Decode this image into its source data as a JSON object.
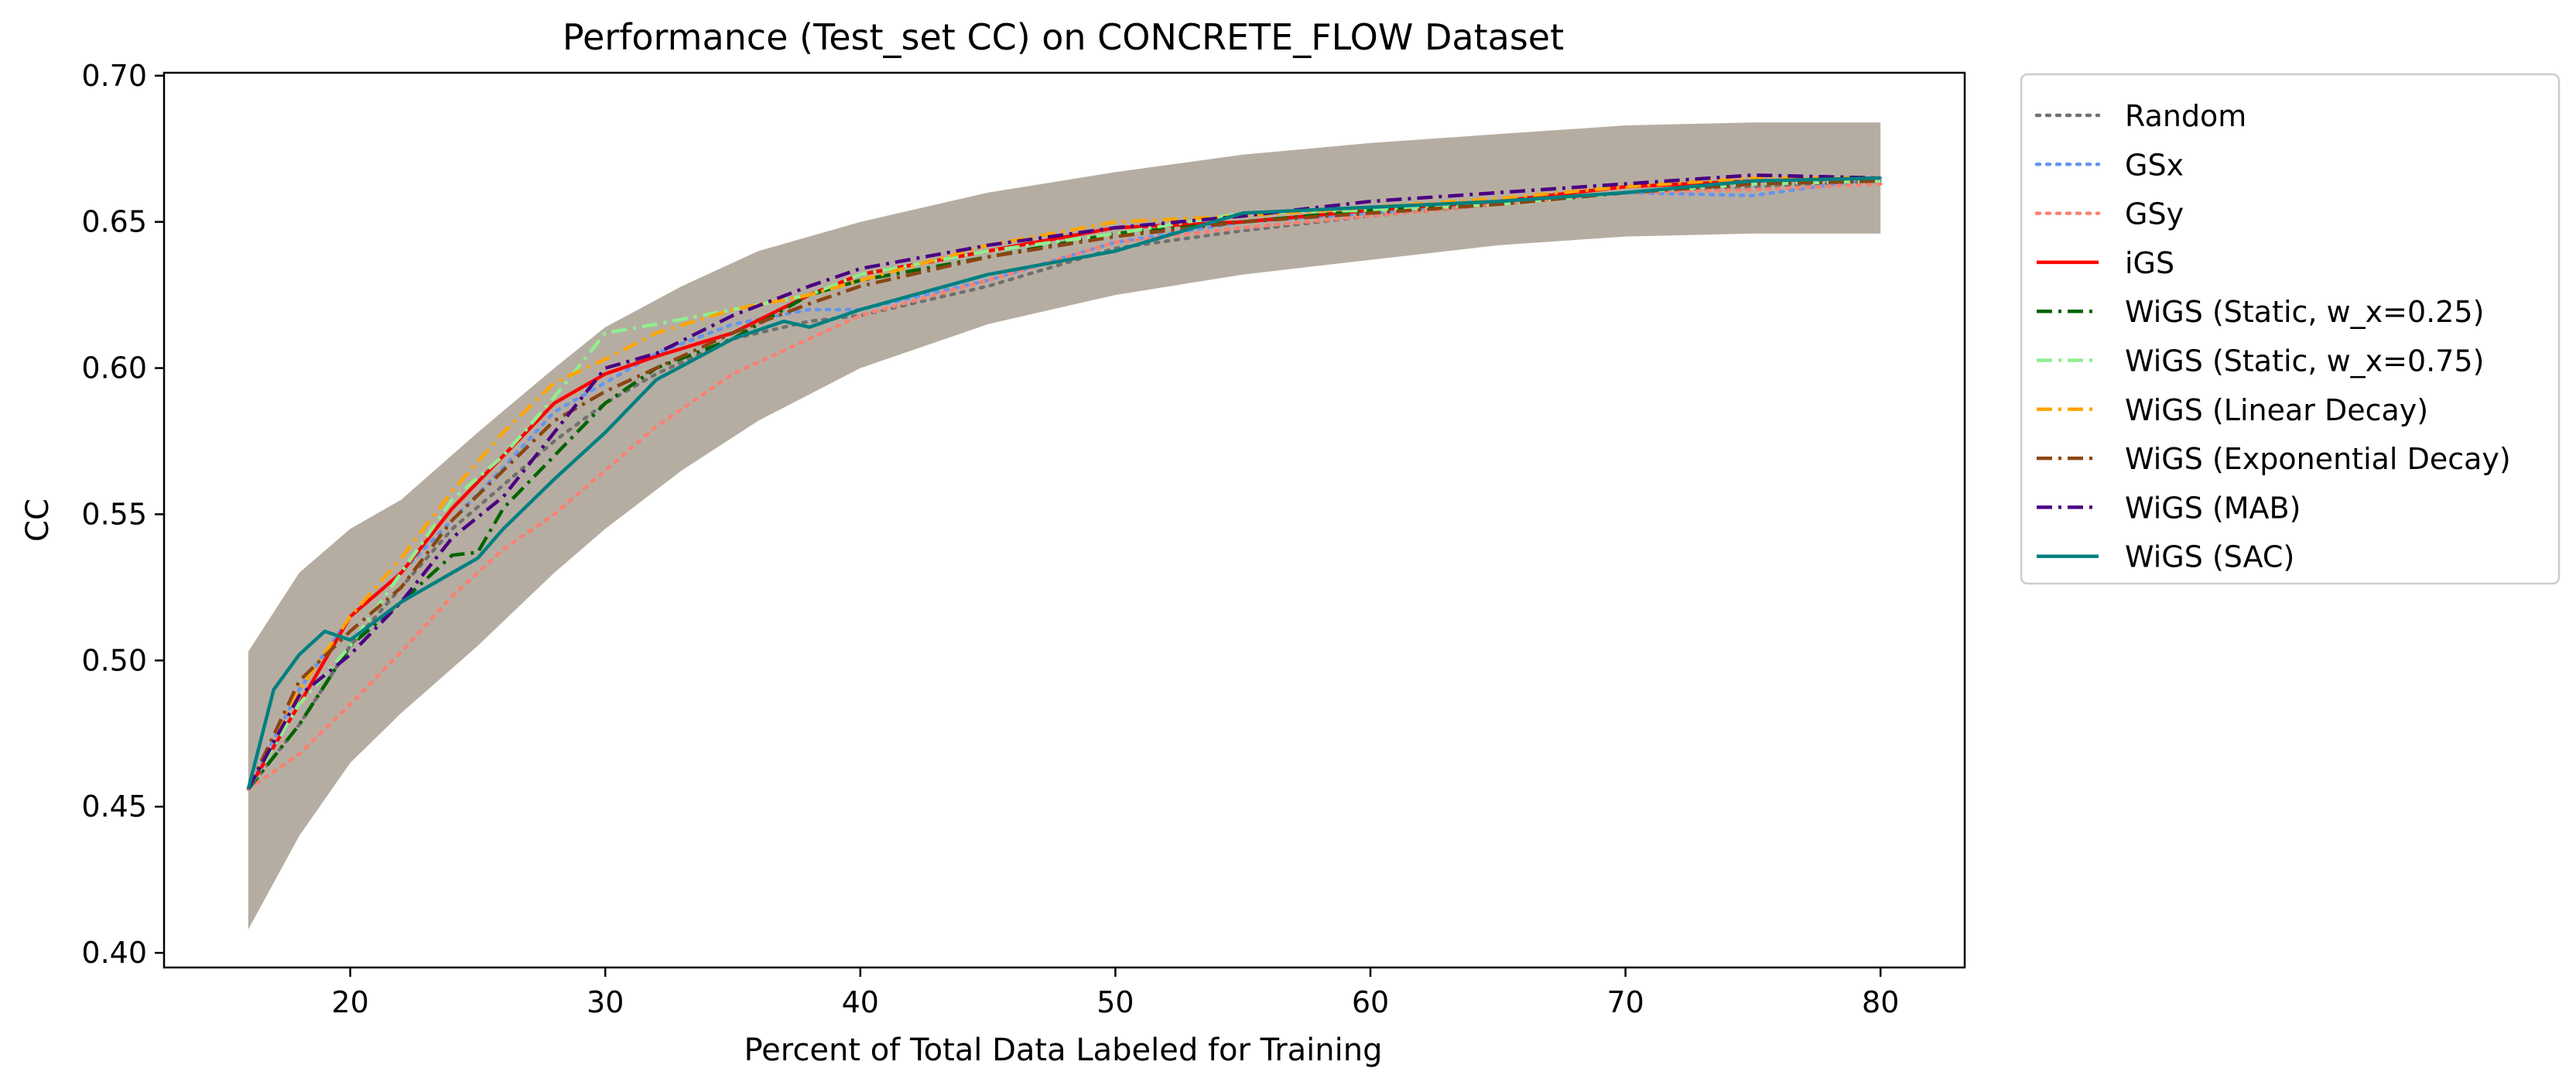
{
  "chart_data": {
    "type": "line",
    "title": "Performance (Test_set CC) on CONCRETE_FLOW Dataset",
    "xlabel": "Percent of Total Data Labeled for Training",
    "ylabel": "CC",
    "xlim": [
      12.7,
      83.3
    ],
    "ylim": [
      0.395,
      0.701
    ],
    "x_ticks": [
      20,
      30,
      40,
      50,
      60,
      70,
      80
    ],
    "x_tick_labels": [
      "20",
      "30",
      "40",
      "50",
      "60",
      "70",
      "80"
    ],
    "y_ticks": [
      0.4,
      0.45,
      0.5,
      0.55,
      0.6,
      0.65,
      0.7
    ],
    "y_tick_labels": [
      "0.40",
      "0.45",
      "0.50",
      "0.55",
      "0.60",
      "0.65",
      "0.70"
    ],
    "grid": false,
    "legend_position": "outside-right-top",
    "band": {
      "x": [
        16,
        18,
        20,
        22,
        25,
        28,
        30,
        33,
        36,
        40,
        45,
        50,
        55,
        60,
        65,
        70,
        75,
        80
      ],
      "upper": [
        0.503,
        0.53,
        0.545,
        0.555,
        0.578,
        0.6,
        0.614,
        0.628,
        0.64,
        0.65,
        0.66,
        0.667,
        0.673,
        0.677,
        0.68,
        0.683,
        0.684,
        0.684
      ],
      "lower": [
        0.408,
        0.44,
        0.465,
        0.482,
        0.505,
        0.53,
        0.545,
        0.565,
        0.582,
        0.6,
        0.615,
        0.625,
        0.632,
        0.637,
        0.642,
        0.645,
        0.646,
        0.646
      ],
      "color": "#7a6a55"
    },
    "series": [
      {
        "name": "Random",
        "color": "#707070",
        "dash": "dotted",
        "points": [
          [
            16,
            0.456
          ],
          [
            18,
            0.478
          ],
          [
            20,
            0.505
          ],
          [
            22,
            0.525
          ],
          [
            24,
            0.545
          ],
          [
            26,
            0.56
          ],
          [
            28,
            0.575
          ],
          [
            30,
            0.588
          ],
          [
            32,
            0.598
          ],
          [
            35,
            0.61
          ],
          [
            38,
            0.616
          ],
          [
            40,
            0.618
          ],
          [
            45,
            0.628
          ],
          [
            50,
            0.641
          ],
          [
            55,
            0.647
          ],
          [
            60,
            0.652
          ],
          [
            65,
            0.656
          ],
          [
            70,
            0.66
          ],
          [
            75,
            0.662
          ],
          [
            80,
            0.664
          ]
        ]
      },
      {
        "name": "GSx",
        "color": "#6495ed",
        "dash": "dotted",
        "points": [
          [
            16,
            0.456
          ],
          [
            18,
            0.49
          ],
          [
            20,
            0.515
          ],
          [
            22,
            0.53
          ],
          [
            24,
            0.548
          ],
          [
            26,
            0.566
          ],
          [
            28,
            0.585
          ],
          [
            30,
            0.595
          ],
          [
            32,
            0.605
          ],
          [
            35,
            0.615
          ],
          [
            38,
            0.62
          ],
          [
            40,
            0.62
          ],
          [
            45,
            0.63
          ],
          [
            50,
            0.643
          ],
          [
            55,
            0.65
          ],
          [
            60,
            0.653
          ],
          [
            65,
            0.657
          ],
          [
            70,
            0.66
          ],
          [
            75,
            0.659
          ],
          [
            80,
            0.665
          ]
        ]
      },
      {
        "name": "GSy",
        "color": "#fa8072",
        "dash": "dotted",
        "points": [
          [
            16,
            0.456
          ],
          [
            18,
            0.468
          ],
          [
            20,
            0.485
          ],
          [
            22,
            0.503
          ],
          [
            24,
            0.522
          ],
          [
            26,
            0.538
          ],
          [
            28,
            0.55
          ],
          [
            30,
            0.565
          ],
          [
            32,
            0.58
          ],
          [
            35,
            0.598
          ],
          [
            38,
            0.61
          ],
          [
            40,
            0.618
          ],
          [
            45,
            0.63
          ],
          [
            50,
            0.643
          ],
          [
            55,
            0.648
          ],
          [
            60,
            0.652
          ],
          [
            65,
            0.656
          ],
          [
            70,
            0.66
          ],
          [
            75,
            0.661
          ],
          [
            80,
            0.663
          ]
        ]
      },
      {
        "name": "iGS",
        "color": "#ff0000",
        "dash": "solid",
        "points": [
          [
            16,
            0.456
          ],
          [
            18,
            0.485
          ],
          [
            20,
            0.515
          ],
          [
            22,
            0.53
          ],
          [
            24,
            0.552
          ],
          [
            26,
            0.57
          ],
          [
            28,
            0.588
          ],
          [
            30,
            0.598
          ],
          [
            32,
            0.604
          ],
          [
            35,
            0.612
          ],
          [
            38,
            0.625
          ],
          [
            40,
            0.632
          ],
          [
            45,
            0.64
          ],
          [
            50,
            0.648
          ],
          [
            55,
            0.65
          ],
          [
            60,
            0.654
          ],
          [
            65,
            0.657
          ],
          [
            70,
            0.662
          ],
          [
            75,
            0.664
          ],
          [
            80,
            0.665
          ]
        ]
      },
      {
        "name": "WiGS (Static, w_x=0.25)",
        "color": "#006400",
        "dash": "dashdot",
        "points": [
          [
            16,
            0.456
          ],
          [
            18,
            0.478
          ],
          [
            20,
            0.505
          ],
          [
            22,
            0.52
          ],
          [
            24,
            0.536
          ],
          [
            25,
            0.537
          ],
          [
            26,
            0.552
          ],
          [
            28,
            0.57
          ],
          [
            30,
            0.588
          ],
          [
            32,
            0.6
          ],
          [
            35,
            0.61
          ],
          [
            38,
            0.625
          ],
          [
            40,
            0.63
          ],
          [
            45,
            0.638
          ],
          [
            50,
            0.646
          ],
          [
            55,
            0.65
          ],
          [
            60,
            0.654
          ],
          [
            65,
            0.656
          ],
          [
            70,
            0.66
          ],
          [
            75,
            0.663
          ],
          [
            80,
            0.664
          ]
        ]
      },
      {
        "name": "WiGS (Static, w_x=0.75)",
        "color": "#90ee90",
        "dash": "dashdot",
        "points": [
          [
            16,
            0.456
          ],
          [
            18,
            0.485
          ],
          [
            20,
            0.505
          ],
          [
            22,
            0.53
          ],
          [
            24,
            0.555
          ],
          [
            26,
            0.57
          ],
          [
            28,
            0.59
          ],
          [
            30,
            0.612
          ],
          [
            32,
            0.615
          ],
          [
            35,
            0.62
          ],
          [
            38,
            0.625
          ],
          [
            40,
            0.632
          ],
          [
            45,
            0.64
          ],
          [
            50,
            0.646
          ],
          [
            55,
            0.653
          ],
          [
            60,
            0.654
          ],
          [
            65,
            0.656
          ],
          [
            70,
            0.66
          ],
          [
            75,
            0.663
          ],
          [
            80,
            0.664
          ]
        ]
      },
      {
        "name": "WiGS (Linear Decay)",
        "color": "#ffa500",
        "dash": "dashdot",
        "points": [
          [
            16,
            0.456
          ],
          [
            18,
            0.49
          ],
          [
            20,
            0.515
          ],
          [
            22,
            0.535
          ],
          [
            24,
            0.558
          ],
          [
            26,
            0.578
          ],
          [
            28,
            0.595
          ],
          [
            30,
            0.603
          ],
          [
            32,
            0.612
          ],
          [
            35,
            0.62
          ],
          [
            38,
            0.625
          ],
          [
            40,
            0.63
          ],
          [
            45,
            0.642
          ],
          [
            50,
            0.65
          ],
          [
            55,
            0.652
          ],
          [
            60,
            0.655
          ],
          [
            65,
            0.658
          ],
          [
            70,
            0.662
          ],
          [
            75,
            0.665
          ],
          [
            80,
            0.665
          ]
        ]
      },
      {
        "name": "WiGS (Exponential Decay)",
        "color": "#8b4513",
        "dash": "dashdot",
        "points": [
          [
            16,
            0.456
          ],
          [
            18,
            0.493
          ],
          [
            20,
            0.51
          ],
          [
            22,
            0.525
          ],
          [
            24,
            0.548
          ],
          [
            26,
            0.565
          ],
          [
            28,
            0.582
          ],
          [
            30,
            0.592
          ],
          [
            32,
            0.6
          ],
          [
            35,
            0.612
          ],
          [
            38,
            0.622
          ],
          [
            40,
            0.628
          ],
          [
            45,
            0.638
          ],
          [
            50,
            0.645
          ],
          [
            55,
            0.65
          ],
          [
            60,
            0.653
          ],
          [
            65,
            0.656
          ],
          [
            70,
            0.66
          ],
          [
            75,
            0.663
          ],
          [
            80,
            0.664
          ]
        ]
      },
      {
        "name": "WiGS (MAB)",
        "color": "#4b0082",
        "dash": "dashdot",
        "points": [
          [
            16,
            0.456
          ],
          [
            18,
            0.488
          ],
          [
            20,
            0.502
          ],
          [
            22,
            0.52
          ],
          [
            24,
            0.542
          ],
          [
            26,
            0.556
          ],
          [
            28,
            0.578
          ],
          [
            30,
            0.6
          ],
          [
            32,
            0.605
          ],
          [
            35,
            0.618
          ],
          [
            38,
            0.628
          ],
          [
            40,
            0.634
          ],
          [
            45,
            0.642
          ],
          [
            50,
            0.648
          ],
          [
            55,
            0.652
          ],
          [
            60,
            0.657
          ],
          [
            65,
            0.66
          ],
          [
            70,
            0.663
          ],
          [
            75,
            0.666
          ],
          [
            80,
            0.665
          ]
        ]
      },
      {
        "name": "WiGS (SAC)",
        "color": "#008080",
        "dash": "solid",
        "points": [
          [
            16,
            0.456
          ],
          [
            17,
            0.49
          ],
          [
            18,
            0.502
          ],
          [
            19,
            0.51
          ],
          [
            20,
            0.507
          ],
          [
            22,
            0.52
          ],
          [
            24,
            0.53
          ],
          [
            25,
            0.535
          ],
          [
            26,
            0.545
          ],
          [
            28,
            0.562
          ],
          [
            30,
            0.578
          ],
          [
            32,
            0.596
          ],
          [
            35,
            0.61
          ],
          [
            37,
            0.616
          ],
          [
            38,
            0.614
          ],
          [
            40,
            0.62
          ],
          [
            45,
            0.632
          ],
          [
            50,
            0.64
          ],
          [
            55,
            0.653
          ],
          [
            60,
            0.655
          ],
          [
            65,
            0.657
          ],
          [
            70,
            0.66
          ],
          [
            75,
            0.664
          ],
          [
            80,
            0.665
          ]
        ]
      }
    ]
  }
}
